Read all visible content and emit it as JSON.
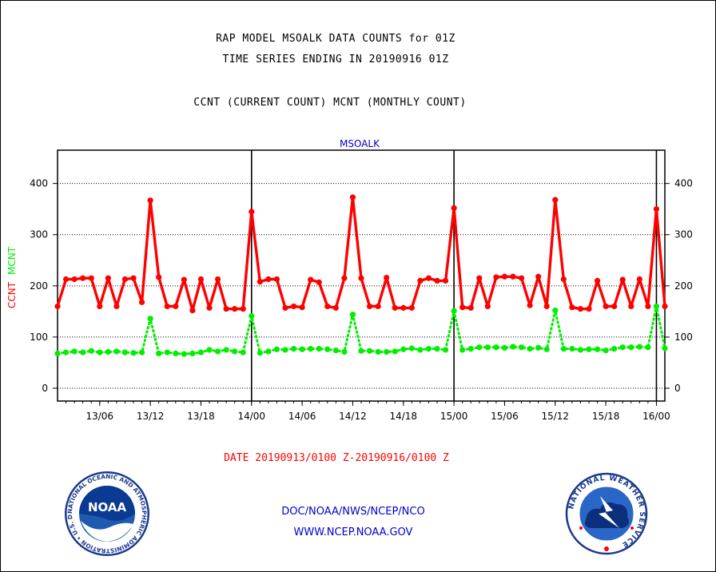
{
  "header": {
    "title_line1": "RAP MODEL MSOALK DATA COUNTS for 01Z",
    "title_line2": "TIME SERIES ENDING IN 20190916 01Z",
    "title_line3": "CCNT (CURRENT COUNT) MCNT (MONTHLY COUNT)"
  },
  "footer": {
    "date_range": "DATE 20190913/0100 Z-20190916/0100 Z",
    "org": "DOC/NOAA/NWS/NCEP/NCO",
    "url": "WWW.NCEP.NOAA.GOV"
  },
  "logos": {
    "left_label": "NOAA",
    "left_ring_text": "NATIONAL OCEANIC AND ATMOSPHERIC ADMINISTRATION • U.S. DEPARTMENT OF COMMERCE",
    "right_ring_text": "NATIONAL WEATHER SERVICE"
  },
  "colors": {
    "ccnt": "#ff0000",
    "mcnt": "#00ee00",
    "subtitle": "#0000cc",
    "footer_blue": "#0000cc",
    "date_red": "#ff0000"
  },
  "chart_data": {
    "type": "line",
    "subtitle": "MSOALK",
    "ylabel_left_1": "CCNT",
    "ylabel_left_2": "MCNT",
    "ylim": [
      -25,
      465
    ],
    "yticks": [
      0,
      100,
      200,
      300,
      400
    ],
    "grid": true,
    "xlim": [
      0,
      72
    ],
    "xticks": [
      {
        "x": 5,
        "label": "13/06"
      },
      {
        "x": 11,
        "label": "13/12"
      },
      {
        "x": 17,
        "label": "13/18"
      },
      {
        "x": 23,
        "label": "14/00"
      },
      {
        "x": 29,
        "label": "14/06"
      },
      {
        "x": 35,
        "label": "14/12"
      },
      {
        "x": 41,
        "label": "14/18"
      },
      {
        "x": 47,
        "label": "15/00"
      },
      {
        "x": 53,
        "label": "15/06"
      },
      {
        "x": 59,
        "label": "15/12"
      },
      {
        "x": 65,
        "label": "15/18"
      },
      {
        "x": 71,
        "label": "16/00"
      }
    ],
    "day_boundaries": [
      23,
      47,
      71
    ],
    "series": [
      {
        "name": "CCNT",
        "style": "solid",
        "values": [
          160,
          213,
          213,
          215,
          215,
          160,
          215,
          160,
          213,
          215,
          168,
          367,
          217,
          160,
          160,
          212,
          152,
          213,
          157,
          213,
          155,
          155,
          155,
          345,
          208,
          213,
          213,
          157,
          160,
          158,
          212,
          207,
          160,
          157,
          215,
          373,
          215,
          160,
          160,
          216,
          157,
          157,
          157,
          210,
          215,
          210,
          210,
          352,
          158,
          157,
          215,
          160,
          217,
          218,
          218,
          215,
          162,
          218,
          160,
          368,
          213,
          158,
          155,
          155,
          210,
          160,
          160,
          212,
          160,
          213,
          160,
          350,
          160
        ]
      },
      {
        "name": "MCNT",
        "style": "dotted",
        "values": [
          68,
          70,
          72,
          70,
          73,
          70,
          71,
          72,
          70,
          69,
          70,
          136,
          68,
          70,
          68,
          67,
          68,
          70,
          75,
          72,
          75,
          72,
          70,
          141,
          69,
          72,
          76,
          75,
          77,
          76,
          77,
          77,
          76,
          74,
          71,
          144,
          73,
          73,
          71,
          71,
          72,
          76,
          78,
          75,
          77,
          77,
          75,
          151,
          75,
          77,
          80,
          80,
          80,
          79,
          81,
          80,
          77,
          79,
          76,
          152,
          77,
          77,
          75,
          76,
          76,
          74,
          77,
          80,
          80,
          81,
          80,
          160,
          78
        ]
      }
    ]
  }
}
